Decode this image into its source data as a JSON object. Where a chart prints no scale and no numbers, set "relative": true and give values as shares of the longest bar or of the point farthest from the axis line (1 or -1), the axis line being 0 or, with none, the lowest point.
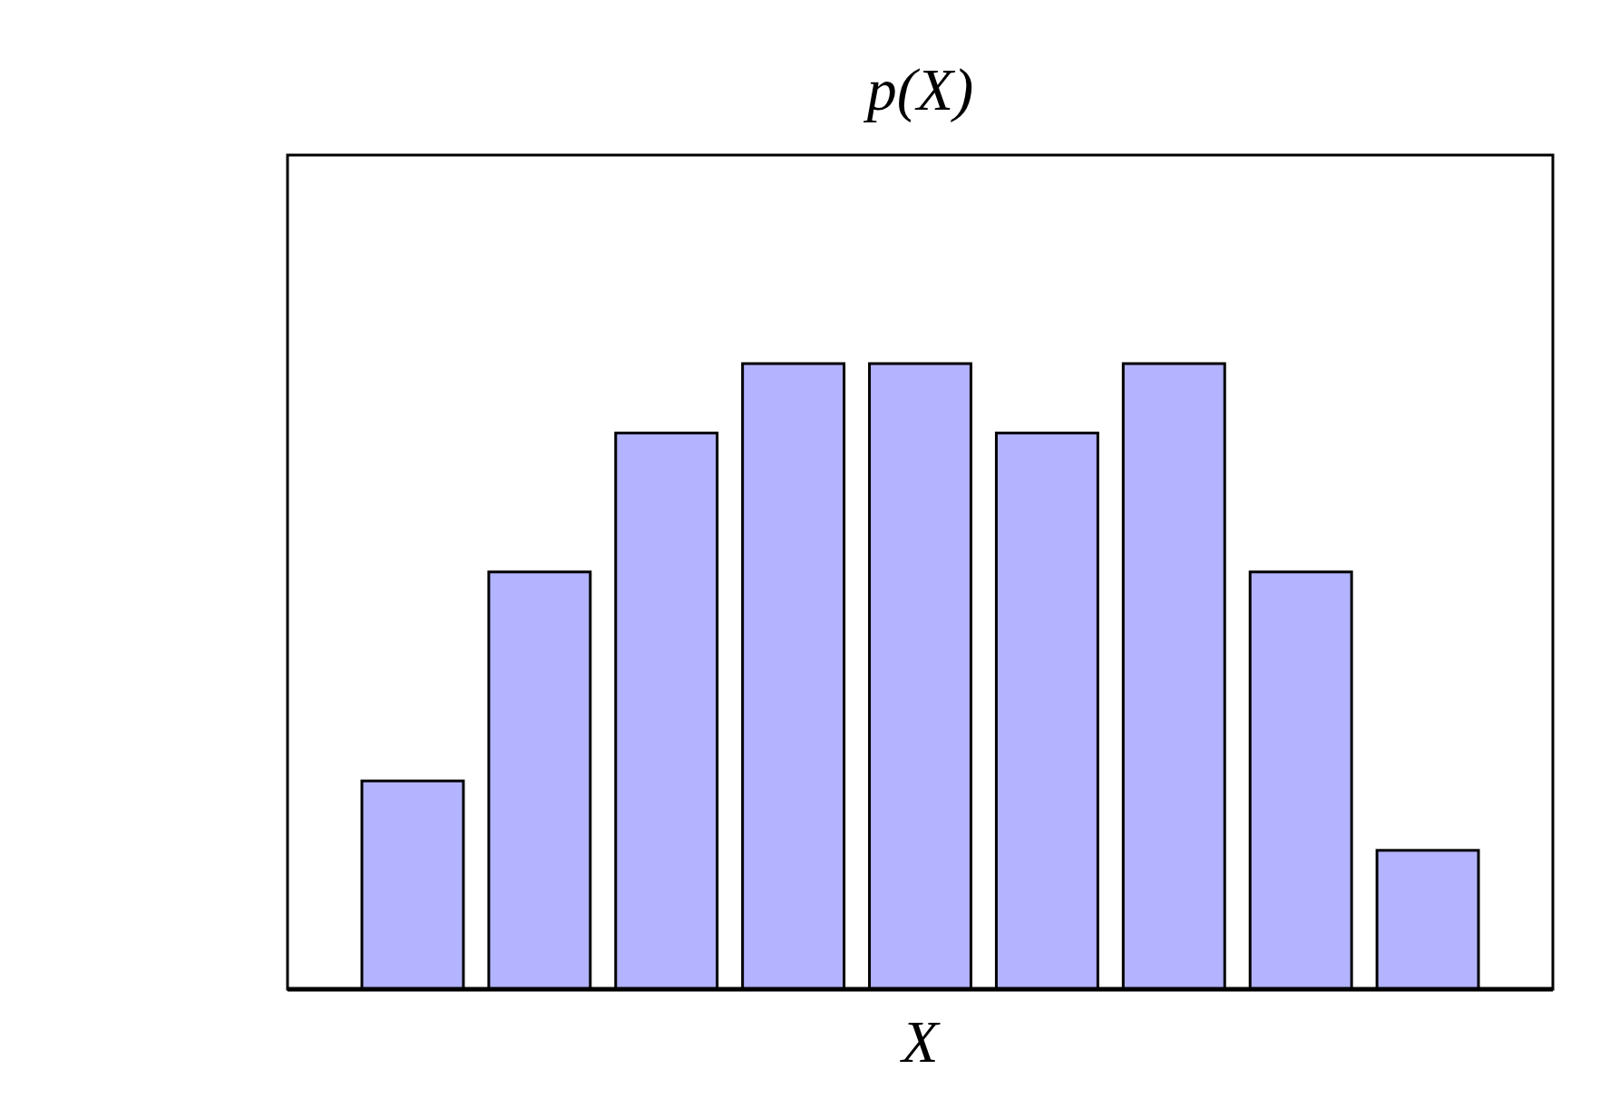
{
  "chart_data": {
    "type": "bar",
    "title": "p(X)",
    "xlabel": "X",
    "relative": true,
    "categories": [
      null,
      null,
      null,
      null,
      null,
      null,
      null,
      null,
      null
    ],
    "values": [
      0.333,
      0.667,
      0.889,
      1,
      1,
      0.889,
      1,
      0.667,
      0.222
    ],
    "color": "#b3b3ff"
  }
}
